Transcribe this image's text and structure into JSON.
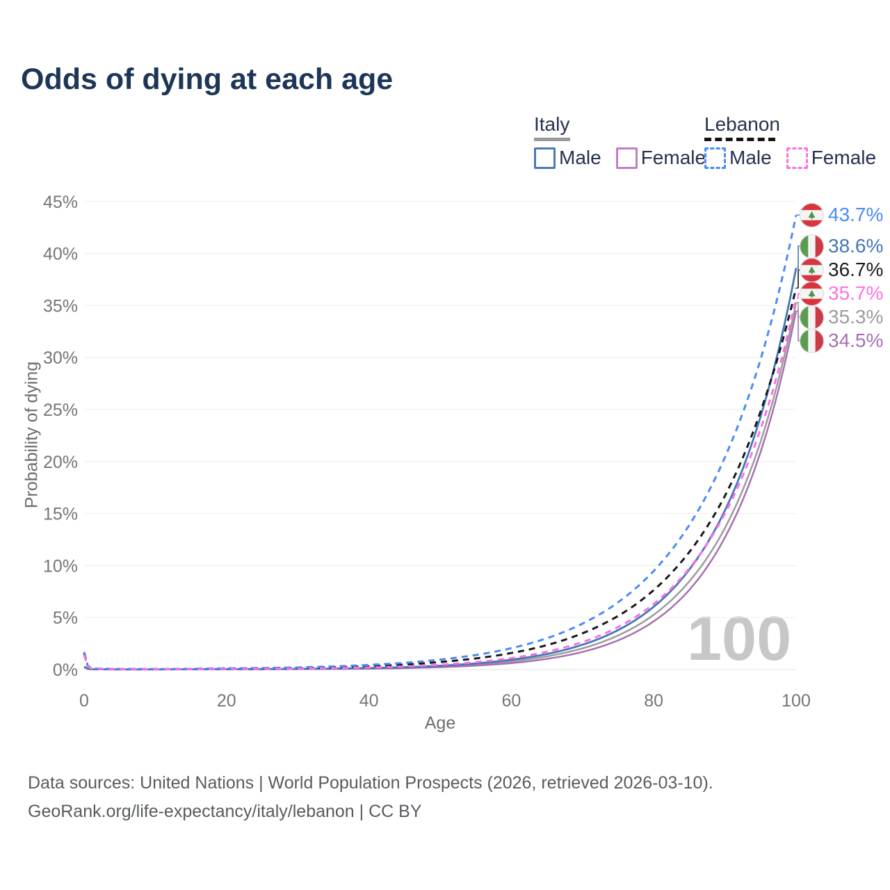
{
  "title": "Odds of dying at each age",
  "legend": {
    "groups": [
      {
        "id": "italy",
        "label": "Italy",
        "underline": {
          "color": "#9a9a9a",
          "dashed": false
        },
        "items": [
          {
            "id": "italy-male",
            "label": "Male",
            "color": "#4a7ab8",
            "dashed": false
          },
          {
            "id": "italy-female",
            "label": "Female",
            "color": "#c07ec6",
            "dashed": false
          }
        ]
      },
      {
        "id": "lebanon",
        "label": "Lebanon",
        "underline": {
          "color": "#141414",
          "dashed": true
        },
        "items": [
          {
            "id": "lebanon-male",
            "label": "Male",
            "color": "#4b8bf2",
            "dashed": true
          },
          {
            "id": "lebanon-female",
            "label": "Female",
            "color": "#fb71e3",
            "dashed": true
          }
        ]
      }
    ]
  },
  "chart_data": {
    "type": "line",
    "title": "Odds of dying at each age",
    "xlabel": "Age",
    "ylabel": "Probability of dying",
    "xlim": [
      0,
      100
    ],
    "ylim": [
      0,
      45
    ],
    "x_ticks": [
      0,
      20,
      40,
      60,
      80,
      100
    ],
    "y_ticks": [
      0,
      5,
      10,
      15,
      20,
      25,
      30,
      35,
      40,
      45
    ],
    "y_tick_suffix": "%",
    "grid": "horizontal",
    "legend_position": "top-right",
    "hover_age": "100",
    "ages": [
      0,
      1,
      5,
      10,
      15,
      20,
      25,
      30,
      35,
      40,
      45,
      50,
      55,
      60,
      65,
      70,
      75,
      80,
      85,
      90,
      95,
      100
    ],
    "series": [
      {
        "id": "italy-total",
        "name": "Italy Both sexes",
        "country": "Italy",
        "sex": "Both",
        "color": "#9b9b9b",
        "label_color": "#9b9b9b",
        "dashed": false,
        "width": 2.5,
        "flag": "italy",
        "end_label": "35.3%",
        "values": [
          0.26,
          0.03,
          0.02,
          0.02,
          0.03,
          0.04,
          0.04,
          0.06,
          0.08,
          0.12,
          0.19,
          0.3,
          0.49,
          0.79,
          1.27,
          2.04,
          3.28,
          5.27,
          8.48,
          13.6,
          21.9,
          35.3
        ]
      },
      {
        "id": "italy-female",
        "name": "Italy Female",
        "country": "Italy",
        "sex": "Female",
        "color": "#a76fb2",
        "label_color": "#a76fb2",
        "dashed": false,
        "width": 2.5,
        "flag": "italy",
        "end_label": "34.5%",
        "values": [
          0.24,
          0.02,
          0.01,
          0.01,
          0.02,
          0.03,
          0.03,
          0.04,
          0.06,
          0.09,
          0.14,
          0.23,
          0.38,
          0.62,
          1.03,
          1.7,
          2.81,
          4.64,
          7.66,
          12.7,
          20.9,
          34.5
        ]
      },
      {
        "id": "italy-male",
        "name": "Italy Male",
        "country": "Italy",
        "sex": "Male",
        "color": "#4377b6",
        "label_color": "#4377b6",
        "dashed": false,
        "width": 2.8,
        "flag": "italy",
        "end_label": "38.6%",
        "values": [
          0.28,
          0.03,
          0.02,
          0.02,
          0.03,
          0.05,
          0.05,
          0.07,
          0.1,
          0.15,
          0.23,
          0.37,
          0.59,
          0.95,
          1.5,
          2.39,
          3.8,
          6.04,
          9.61,
          15.3,
          24.3,
          38.6
        ]
      },
      {
        "id": "lebanon-total",
        "name": "Lebanon Both sexes",
        "country": "Lebanon",
        "sex": "Both",
        "color": "#181818",
        "label_color": "#1a1a1a",
        "dashed": true,
        "width": 3,
        "flag": "lebanon",
        "end_label": "36.7%",
        "values": [
          1.55,
          0.09,
          0.05,
          0.05,
          0.07,
          0.1,
          0.12,
          0.15,
          0.22,
          0.33,
          0.49,
          0.73,
          1.07,
          1.59,
          2.35,
          3.49,
          5.16,
          7.64,
          11.3,
          16.7,
          24.8,
          36.7
        ]
      },
      {
        "id": "lebanon-male",
        "name": "Lebanon Male",
        "country": "Lebanon",
        "sex": "Male",
        "color": "#4b8bf2",
        "label_color": "#4b8bf2",
        "dashed": true,
        "width": 3,
        "flag": "lebanon",
        "end_label": "43.7%",
        "values": [
          1.7,
          0.1,
          0.06,
          0.06,
          0.08,
          0.12,
          0.15,
          0.21,
          0.31,
          0.45,
          0.65,
          0.96,
          1.4,
          2.06,
          3.01,
          4.42,
          6.47,
          9.48,
          13.9,
          20.4,
          29.8,
          43.7
        ]
      },
      {
        "id": "lebanon-female",
        "name": "Lebanon Female",
        "country": "Lebanon",
        "sex": "Female",
        "color": "#fb71e3",
        "label_color": "#fb71e3",
        "dashed": true,
        "width": 3,
        "flag": "lebanon",
        "end_label": "35.7%",
        "values": [
          1.4,
          0.08,
          0.04,
          0.04,
          0.05,
          0.06,
          0.07,
          0.09,
          0.13,
          0.2,
          0.3,
          0.47,
          0.72,
          1.11,
          1.72,
          2.65,
          4.09,
          6.31,
          9.73,
          15.0,
          23.1,
          35.7
        ]
      }
    ]
  },
  "footer": {
    "line1": "Data sources: United Nations | World Population Prospects (2026, retrieved 2026-03-10).",
    "line2": "GeoRank.org/life-expectancy/italy/lebanon | CC BY"
  }
}
